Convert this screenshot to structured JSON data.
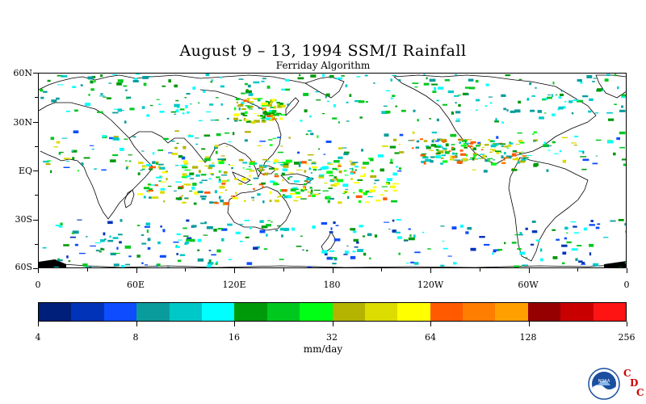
{
  "title": "August 9 – 13, 1994 SSM/I Rainfall",
  "subtitle": "Ferriday Algorithm",
  "map": {
    "lat_labels": [
      "60N",
      "30N",
      "EQ",
      "30S",
      "60S"
    ],
    "lon_labels": [
      "0",
      "60E",
      "120E",
      "180",
      "120W",
      "60W",
      "0"
    ]
  },
  "colorbar": {
    "colors": [
      "#001f7a",
      "#0033b8",
      "#0d4dff",
      "#0a9c9c",
      "#00c8c8",
      "#00ffff",
      "#00990a",
      "#00c81e",
      "#00ff14",
      "#b4b400",
      "#dcdc00",
      "#ffff00",
      "#ff5a00",
      "#ff7d00",
      "#ffa000",
      "#960000",
      "#c80000",
      "#ff1414"
    ],
    "tick_labels": [
      "4",
      "8",
      "16",
      "32",
      "64",
      "128",
      "256"
    ],
    "units": "mm/day"
  },
  "logo": {
    "icon": "noaa-logo-icon",
    "lettering": "NOAA",
    "cdc_letters": [
      "C",
      "D",
      "C"
    ]
  }
}
